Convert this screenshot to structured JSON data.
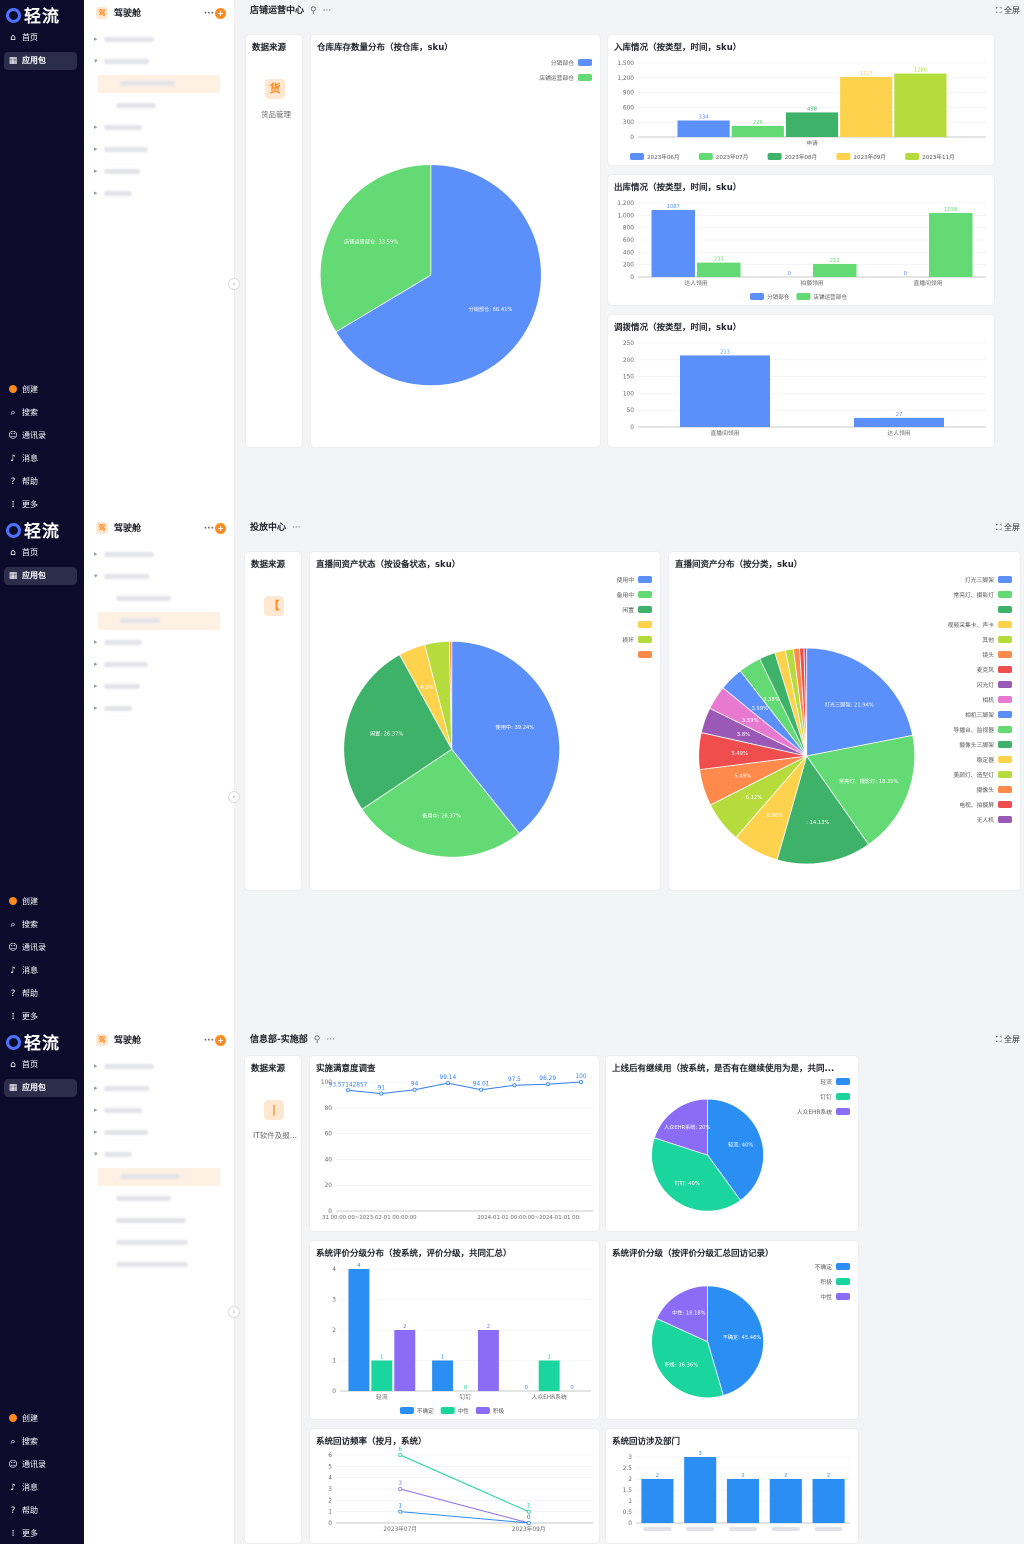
{
  "nav": {
    "logo": "轻流",
    "top": [
      {
        "icon": "⌂",
        "label": "首页",
        "icon_name": "home-icon"
      },
      {
        "icon": "▦",
        "label": "应用包",
        "icon_name": "apps-icon",
        "active": true
      }
    ],
    "bottom": [
      {
        "icon": "●",
        "label": "创建",
        "icon_name": "create-icon"
      },
      {
        "icon": "⌕",
        "label": "搜索",
        "icon_name": "search-icon"
      },
      {
        "icon": "☺",
        "label": "通讯录",
        "icon_name": "contacts-icon"
      },
      {
        "icon": "♪",
        "label": "消息",
        "icon_name": "bell-icon"
      },
      {
        "icon": "?",
        "label": "帮助",
        "icon_name": "help-icon"
      },
      {
        "icon": "⁞",
        "label": "更多",
        "icon_name": "more-icon"
      }
    ]
  },
  "tree": {
    "badge": "驾",
    "title": "驾驶舱",
    "more": "···",
    "plus": "+"
  },
  "panels": [
    {
      "header": {
        "title": "店铺运营中心",
        "tool": "⚲",
        "more": "···",
        "full": "⛶ 全屏"
      },
      "source": {
        "title": "数据来源",
        "icon": "货",
        "label": "货品管理"
      },
      "charts": [
        {
          "title": "仓库库存数量分布（按仓库，sku）",
          "chart_data": {
            "type": "pie",
            "legend_position": "top-right",
            "slices": [
              {
                "name": "分销部仓",
                "value": 66.41,
                "label": "分销部仓: 66.41%",
                "color": "#5b8ff9"
              },
              {
                "name": "店铺运营部仓",
                "value": 33.59,
                "label": "店铺运营部仓: 33.59%",
                "color": "#63da73"
              }
            ]
          }
        },
        {
          "title": "入库情况（按类型，时间，sku）",
          "chart_data": {
            "type": "bar",
            "categories": [
              "申请"
            ],
            "ylim": [
              0,
              1500
            ],
            "yticks": [
              "0",
              "300",
              "600",
              "900",
              "1,200",
              "1,500"
            ],
            "series": [
              {
                "name": "2023年06月",
                "values": [
                  334
                ],
                "color": "#5b8ff9"
              },
              {
                "name": "2023年07月",
                "values": [
                  226
                ],
                "color": "#63da73"
              },
              {
                "name": "2023年08月",
                "values": [
                  498
                ],
                "color": "#3fb26a"
              },
              {
                "name": "2023年09月",
                "values": [
                  1217
                ],
                "color": "#ffd24d"
              },
              {
                "name": "2023年11月",
                "values": [
                  1286
                ],
                "color": "#b5dc3c"
              }
            ]
          }
        },
        {
          "title": "出库情况（按类型，时间，sku）",
          "chart_data": {
            "type": "bar",
            "categories": [
              "达人领用",
              "拍摄领用",
              "直播间领用"
            ],
            "ylim": [
              0,
              1200
            ],
            "yticks": [
              "0",
              "200",
              "400",
              "600",
              "800",
              "1,000",
              "1,200"
            ],
            "series": [
              {
                "name": "分销部仓",
                "values": [
                  1087,
                  0,
                  0
                ],
                "color": "#5b8ff9"
              },
              {
                "name": "店铺运营部仓",
                "values": [
                  233,
                  212,
                  1038
                ],
                "color": "#63da73"
              }
            ]
          }
        },
        {
          "title": "调拨情况（按类型，时间，sku）",
          "chart_data": {
            "type": "bar",
            "categories": [
              "直播间领用",
              "达人领用"
            ],
            "ylim": [
              0,
              250
            ],
            "yticks": [
              "0",
              "50",
              "100",
              "150",
              "200",
              "250"
            ],
            "series": [
              {
                "name": "",
                "values": [
                  213,
                  27
                ],
                "color": "#5b8ff9"
              }
            ]
          }
        }
      ]
    },
    {
      "header": {
        "title": "投放中心",
        "tool": "",
        "more": "···",
        "full": "⛶ 全屏"
      },
      "source": {
        "title": "数据来源",
        "icon": "【",
        "label": ""
      },
      "charts": [
        {
          "title": "直播间资产状态（按设备状态，sku）",
          "chart_data": {
            "type": "pie",
            "legend_position": "top-right",
            "slices": [
              {
                "name": "使用中",
                "value": 39.24,
                "label": "使用中: 39.24%",
                "color": "#5b8ff9"
              },
              {
                "name": "备用中",
                "value": 26.37,
                "label": "备用中: 26.37%",
                "color": "#63da73"
              },
              {
                "name": "闲置",
                "value": 26.37,
                "label": "闲置: 26.37%",
                "color": "#3fb26a"
              },
              {
                "name": "",
                "value": 4.0,
                "label": "4.0%",
                "color": "#ffd24d"
              },
              {
                "name": "损坏",
                "value": 3.67,
                "label": "",
                "color": "#b5dc3c"
              },
              {
                "name": "",
                "value": 0.35,
                "label": "",
                "color": "#ff8a4c"
              }
            ]
          }
        },
        {
          "title": "直播间资产分布（按分类，sku）",
          "chart_data": {
            "type": "pie",
            "legend_position": "right",
            "slices": [
              {
                "name": "灯光三脚架",
                "value": 21.94,
                "label": "灯光三脚架: 21.94%",
                "color": "#5b8ff9"
              },
              {
                "name": "常亮灯、摄影灯",
                "value": 18.35,
                "label": "常亮灯、摄影灯: 18.35%",
                "color": "#63da73"
              },
              {
                "name": "",
                "value": 14.13,
                "label": ": 14.13%",
                "color": "#3fb26a"
              },
              {
                "name": "视频采集卡、声卡",
                "value": 6.96,
                "label": "6.96%",
                "color": "#ffd24d"
              },
              {
                "name": "其他",
                "value": 6.12,
                "label": "6.12%",
                "color": "#b5dc3c"
              },
              {
                "name": "镜头",
                "value": 5.49,
                "label": "5.49%",
                "color": "#ff8a4c"
              },
              {
                "name": "麦克风",
                "value": 5.49,
                "label": "5.49%",
                "color": "#f04e4e"
              },
              {
                "name": "闪光灯",
                "value": 3.8,
                "label": "3.8%",
                "color": "#9b59b6"
              },
              {
                "name": "相机",
                "value": 3.59,
                "label": "3.59%",
                "color": "#e879d0"
              },
              {
                "name": "相机三脚架",
                "value": 3.59,
                "label": "3.59%",
                "color": "#5b8ff9"
              },
              {
                "name": "导播台、监视器",
                "value": 3.38,
                "label": "3.38%",
                "color": "#63da73"
              },
              {
                "name": "摄像头三脚架",
                "value": 2.4,
                "label": "",
                "color": "#3fb26a"
              },
              {
                "name": "稳定器",
                "value": 1.6,
                "label": "",
                "color": "#ffd24d"
              },
              {
                "name": "美颜灯、造型灯",
                "value": 1.2,
                "label": "",
                "color": "#b5dc3c"
              },
              {
                "name": "摄像头",
                "value": 0.9,
                "label": "",
                "color": "#ff8a4c"
              },
              {
                "name": "电视、拍摄屏",
                "value": 0.66,
                "label": "",
                "color": "#f04e4e"
              },
              {
                "name": "无人机",
                "value": 0.4,
                "label": "",
                "color": "#9b59b6"
              }
            ]
          }
        }
      ]
    },
    {
      "header": {
        "title": "信息部-实施部",
        "tool": "⚲",
        "more": "···",
        "full": "⛶ 全屏"
      },
      "source": {
        "title": "数据来源",
        "icon": "|",
        "label": "IT软件及报..."
      },
      "charts": [
        {
          "title": "实施满意度调查",
          "chart_data": {
            "type": "line",
            "ylim": [
              0,
              100
            ],
            "yticks": [
              "0",
              "20",
              "40",
              "60",
              "80",
              "100"
            ],
            "x": [
              "2022-01-01 00:00:00",
              "2023-02-01 00:00:00",
              "",
              "",
              "",
              "2024-01-01 00:00:00",
              "2024-01-01 00:00:00",
              ""
            ],
            "xlabels": [
              "31 00:00:00~2023-02-01 00:00:00",
              "2024-01-01 00:00:00~2024-01-01 00:"
            ],
            "series": [
              {
                "name": "",
                "values": [
                  93.57142857,
                  91,
                  94,
                  99.14,
                  94.01,
                  97.5,
                  98.29,
                  100
                ],
                "labels": [
                  "93.57142857",
                  "91",
                  "94",
                  "99.14",
                  "94.01",
                  "97.5",
                  "98.29",
                  "100"
                ],
                "color": "#2f7ef5"
              }
            ]
          }
        },
        {
          "title": "上线后有继续用（按系统，是否有在继续使用为是，共同...",
          "chart_data": {
            "type": "pie",
            "legend_position": "top-right",
            "slices": [
              {
                "name": "轻流",
                "value": 40,
                "label": "轻流: 40%",
                "color": "#2b8ef3"
              },
              {
                "name": "钉钉",
                "value": 40,
                "label": "钉钉: 40%",
                "color": "#1ad59e"
              },
              {
                "name": "人众EHR系统",
                "value": 20,
                "label": "人众EHR系统: 20%",
                "color": "#8b6cf6"
              }
            ]
          }
        },
        {
          "title": "系统评价分级分布（按系统，评价分级，共同汇总）",
          "chart_data": {
            "type": "bar",
            "categories": [
              "轻流",
              "钉钉",
              "人众EHR系统"
            ],
            "ylim": [
              0,
              4
            ],
            "yticks": [
              "0",
              "1",
              "2",
              "3",
              "4"
            ],
            "series": [
              {
                "name": "不确定",
                "values": [
                  4,
                  1,
                  0
                ],
                "color": "#2b8ef3"
              },
              {
                "name": "中性",
                "values": [
                  1,
                  0,
                  1
                ],
                "color": "#1ad59e"
              },
              {
                "name": "积极",
                "values": [
                  2,
                  2,
                  0
                ],
                "color": "#8b6cf6"
              }
            ]
          }
        },
        {
          "title": "系统评价分级（按评价分级汇总回访记录）",
          "chart_data": {
            "type": "pie",
            "legend_position": "top-right",
            "slices": [
              {
                "name": "不确定",
                "value": 45.46,
                "label": "不确定: 45.46%",
                "color": "#2b8ef3"
              },
              {
                "name": "积极",
                "value": 36.36,
                "label": "积极: 36.36%",
                "color": "#1ad59e"
              },
              {
                "name": "中性",
                "value": 18.18,
                "label": "中性: 18.18%",
                "color": "#8b6cf6"
              }
            ]
          }
        },
        {
          "title": "系统回访频率（按月，系统）",
          "chart_data": {
            "type": "line",
            "categories": [
              "2023年07月",
              "2023年09月"
            ],
            "ylim": [
              0,
              6
            ],
            "yticks": [
              "0",
              "1",
              "2",
              "3",
              "4",
              "5",
              "6"
            ],
            "series": [
              {
                "name": "",
                "values": [
                  6,
                  1
                ],
                "color": "#1ad59e"
              },
              {
                "name": "",
                "values": [
                  3,
                  0
                ],
                "color": "#8b6cf6"
              },
              {
                "name": "",
                "values": [
                  1,
                  0
                ],
                "color": "#2b8ef3"
              }
            ]
          }
        },
        {
          "title": "系统回访涉及部门",
          "chart_data": {
            "type": "bar",
            "categories": [
              "",
              "",
              "",
              "",
              ""
            ],
            "ylim": [
              0,
              3
            ],
            "yticks": [
              "0",
              "0.5",
              "1",
              "1.5",
              "2",
              "2.5",
              "3"
            ],
            "series": [
              {
                "name": "",
                "values": [
                  2,
                  3,
                  2,
                  2,
                  2
                ],
                "color": "#2b8ef3"
              }
            ]
          }
        }
      ]
    }
  ]
}
